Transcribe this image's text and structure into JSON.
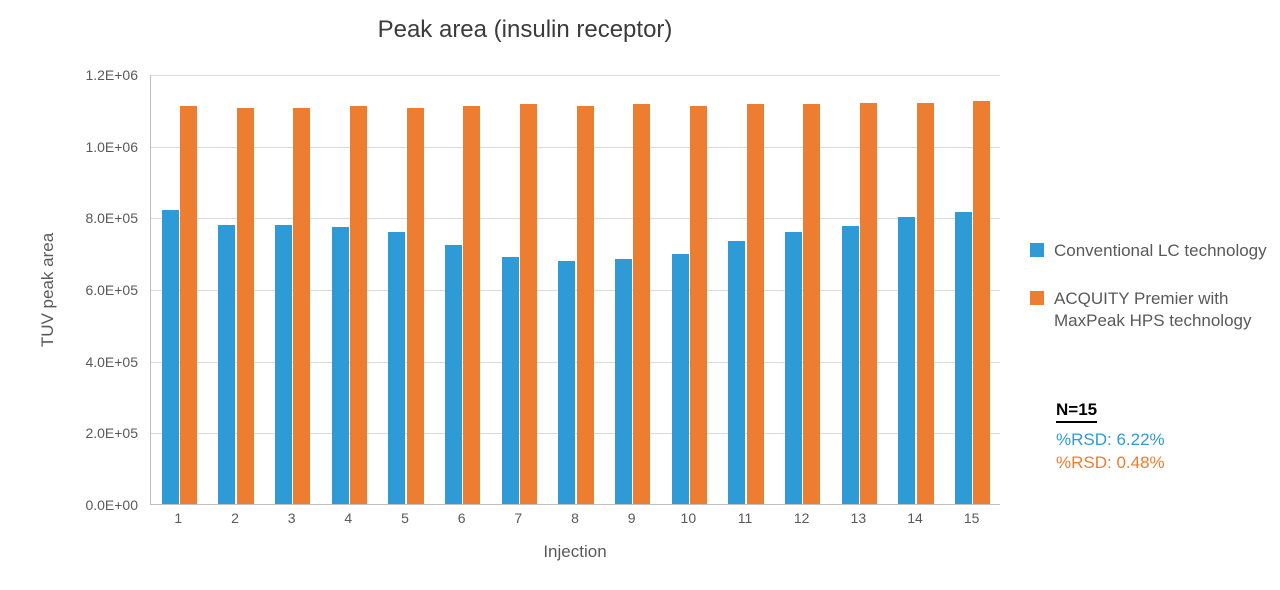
{
  "chart": {
    "type": "bar",
    "title": "Peak area (insulin receptor)",
    "title_fontsize": 24,
    "xlabel": "Injection",
    "ylabel": "TUV peak area",
    "label_fontsize": 17,
    "tick_fontsize": 14,
    "background_color": "#ffffff",
    "grid_color": "#d9d9d9",
    "axis_color": "#bfbfbf",
    "text_color": "#595959",
    "ylim": [
      0,
      1200000
    ],
    "yticks": [
      0,
      200000,
      400000,
      600000,
      800000,
      1000000,
      1200000
    ],
    "ytick_labels": [
      "0.0E+00",
      "2.0E+05",
      "4.0E+05",
      "6.0E+05",
      "8.0E+05",
      "1.0E+06",
      "1.2E+06"
    ],
    "categories": [
      "1",
      "2",
      "3",
      "4",
      "5",
      "6",
      "7",
      "8",
      "9",
      "10",
      "11",
      "12",
      "13",
      "14",
      "15"
    ],
    "series": [
      {
        "name": "Conventional LC technology",
        "color": "#2e9bd6",
        "values": [
          820000,
          780000,
          778000,
          772000,
          758000,
          722000,
          690000,
          678000,
          685000,
          698000,
          735000,
          760000,
          775000,
          800000,
          815000
        ]
      },
      {
        "name": "ACQUITY Premier with MaxPeak HPS technology",
        "color": "#ed7d31",
        "values": [
          1110000,
          1105000,
          1105000,
          1110000,
          1105000,
          1110000,
          1115000,
          1110000,
          1115000,
          1110000,
          1115000,
          1115000,
          1120000,
          1120000,
          1125000
        ]
      }
    ],
    "bar_width_ratio": 0.3,
    "bar_gap_ratio": 0.02,
    "group_gap_ratio": 0.38,
    "stats": {
      "n_label": "N=15",
      "rsd_label": "%RSD:",
      "rsd_values": [
        {
          "text": "6.22%",
          "color": "#2e9bd6"
        },
        {
          "text": "0.48%",
          "color": "#ed7d31"
        }
      ]
    }
  }
}
